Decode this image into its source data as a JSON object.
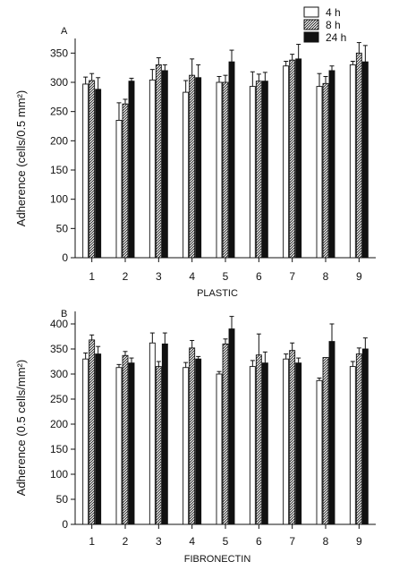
{
  "legend": {
    "items": [
      {
        "label": "4 h",
        "pattern": "open"
      },
      {
        "label": "8 h",
        "pattern": "hatched"
      },
      {
        "label": "24 h",
        "pattern": "solid"
      }
    ]
  },
  "colors": {
    "ink": "#111111",
    "open_fill": "#ffffff",
    "solid_fill": "#111111"
  },
  "chart_data": [
    {
      "type": "bar",
      "panel_label": "A",
      "xlabel": "PLASTIC",
      "ylabel": "Adherence (cells/0.5 mm²)",
      "categories": [
        "1",
        "2",
        "3",
        "4",
        "5",
        "6",
        "7",
        "8",
        "9"
      ],
      "ylim": [
        0,
        375
      ],
      "yticks": [
        0,
        50,
        100,
        150,
        200,
        250,
        300,
        350
      ],
      "legend_position": "top-right",
      "grid": false,
      "series": [
        {
          "name": "4 h",
          "values": [
            297,
            235,
            304,
            283,
            300,
            293,
            328,
            293,
            330
          ],
          "errors": [
            12,
            30,
            18,
            20,
            10,
            25,
            8,
            22,
            6
          ]
        },
        {
          "name": "8 h",
          "values": [
            303,
            263,
            330,
            312,
            300,
            302,
            338,
            298,
            350
          ],
          "errors": [
            12,
            8,
            12,
            28,
            12,
            12,
            10,
            12,
            18
          ]
        },
        {
          "name": "24 h",
          "values": [
            288,
            302,
            320,
            308,
            335,
            302,
            340,
            320,
            335
          ],
          "errors": [
            20,
            5,
            10,
            22,
            20,
            15,
            25,
            8,
            28
          ]
        }
      ]
    },
    {
      "type": "bar",
      "panel_label": "B",
      "xlabel": "FIBRONECTIN",
      "ylabel": "Adherence (0.5 cells/mm²)",
      "categories": [
        "1",
        "2",
        "3",
        "4",
        "5",
        "6",
        "7",
        "8",
        "9"
      ],
      "ylim": [
        0,
        425
      ],
      "yticks": [
        0,
        50,
        100,
        150,
        200,
        250,
        300,
        350,
        400
      ],
      "legend_position": "none",
      "grid": false,
      "series": [
        {
          "name": "4 h",
          "values": [
            330,
            313,
            362,
            313,
            300,
            315,
            330,
            287,
            315
          ],
          "errors": [
            12,
            6,
            20,
            10,
            5,
            12,
            10,
            5,
            10
          ]
        },
        {
          "name": "8 h",
          "values": [
            368,
            337,
            315,
            352,
            360,
            338,
            347,
            333,
            340
          ],
          "errors": [
            10,
            8,
            10,
            15,
            10,
            42,
            15,
            0,
            12
          ]
        },
        {
          "name": "24 h",
          "values": [
            340,
            322,
            360,
            330,
            390,
            322,
            322,
            365,
            350
          ],
          "errors": [
            15,
            10,
            22,
            5,
            25,
            22,
            10,
            35,
            22
          ]
        }
      ]
    }
  ]
}
